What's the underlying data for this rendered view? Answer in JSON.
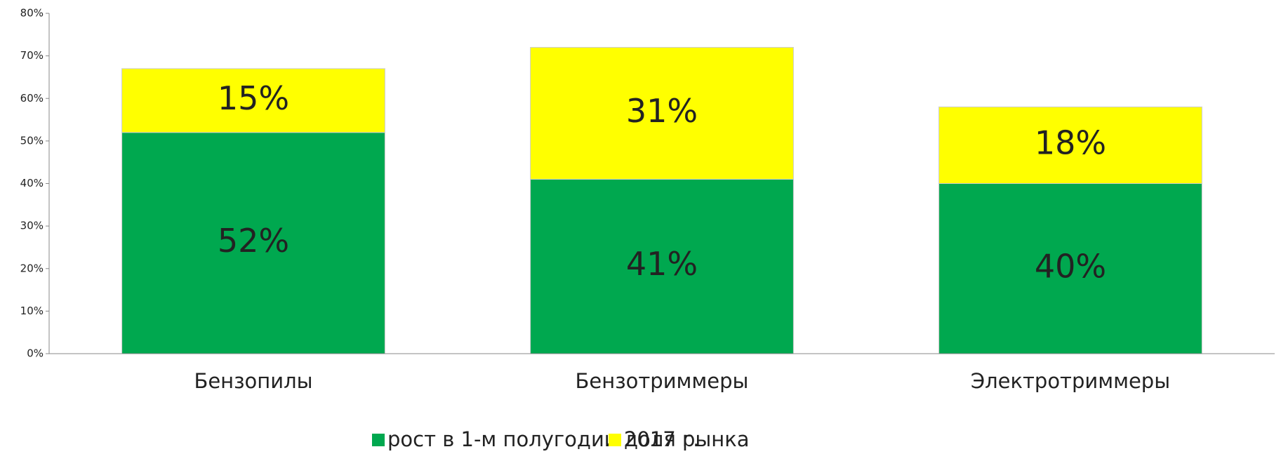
{
  "chart_data": {
    "type": "stacked_bar",
    "categories": [
      "Бензопилы",
      "Бензотриммеры",
      "Электротриммеры"
    ],
    "series": [
      {
        "name": "рост в 1-м полугодии 2017 г.",
        "color": "#00a84f",
        "values": [
          52,
          41,
          40
        ],
        "value_labels": [
          "52%",
          "41%",
          "40%"
        ]
      },
      {
        "name": "доля рынка",
        "color": "#ffff00",
        "values": [
          15,
          31,
          18
        ],
        "value_labels": [
          "15%",
          "31%",
          "18%"
        ]
      }
    ],
    "ylim": [
      0,
      80
    ],
    "yticks": [
      {
        "value": 0,
        "label": "0%"
      },
      {
        "value": 10,
        "label": "10%"
      },
      {
        "value": 20,
        "label": "20%"
      },
      {
        "value": 30,
        "label": "30%"
      },
      {
        "value": 40,
        "label": "40%"
      },
      {
        "value": 50,
        "label": "50%"
      },
      {
        "value": 60,
        "label": "60%"
      },
      {
        "value": 70,
        "label": "70%"
      },
      {
        "value": 80,
        "label": "80%"
      }
    ],
    "grid": false,
    "legend": "bottom"
  }
}
